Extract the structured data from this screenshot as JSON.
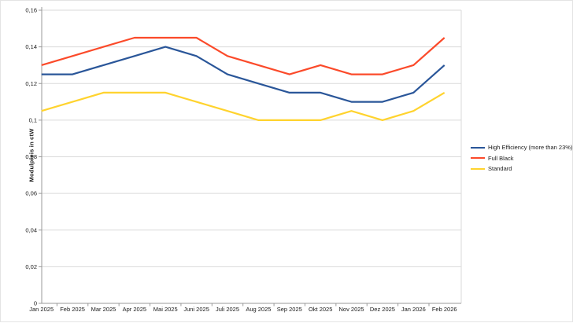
{
  "chart_data": {
    "type": "line",
    "title": "",
    "xlabel": "",
    "ylabel": "Modulpreis in ctW",
    "categories": [
      "Jan 2025",
      "Feb 2025",
      "Mar 2025",
      "Apr 2025",
      "Mai 2025",
      "Juni 2025",
      "Juli 2025",
      "Aug 2025",
      "Sep 2025",
      "Okt 2025",
      "Nov 2025",
      "Dez 2025",
      "Jan 2026",
      "Feb 2026"
    ],
    "series": [
      {
        "name": "High Efficiency (more than 23%)",
        "color": "#2A5699",
        "values": [
          0.125,
          0.125,
          0.13,
          0.135,
          0.14,
          0.135,
          0.125,
          0.12,
          0.115,
          0.115,
          0.11,
          0.11,
          0.115,
          0.13
        ]
      },
      {
        "name": "Full Black",
        "color": "#FB4A2A",
        "values": [
          0.13,
          0.135,
          0.14,
          0.145,
          0.145,
          0.145,
          0.135,
          0.13,
          0.125,
          0.13,
          0.125,
          0.125,
          0.13,
          0.145
        ]
      },
      {
        "name": "Standard",
        "color": "#FFD32E",
        "values": [
          0.105,
          0.11,
          0.115,
          0.115,
          0.115,
          0.11,
          0.105,
          0.1,
          0.1,
          0.1,
          0.105,
          0.1,
          0.105,
          0.115
        ]
      }
    ],
    "ylim": [
      0,
      0.16
    ],
    "ytick_step": 0.02,
    "ytick_labels": [
      "0",
      "0,02",
      "0,04",
      "0,06",
      "0,08",
      "0,1",
      "0,12",
      "0,14",
      "0,16"
    ],
    "decimal_separator": ",",
    "grid": "horizontal",
    "legend_position": "right"
  },
  "colors": {
    "background": "#ffffff",
    "grid": "#dadada",
    "axis": "#999999",
    "text": "#1a1a1a"
  }
}
